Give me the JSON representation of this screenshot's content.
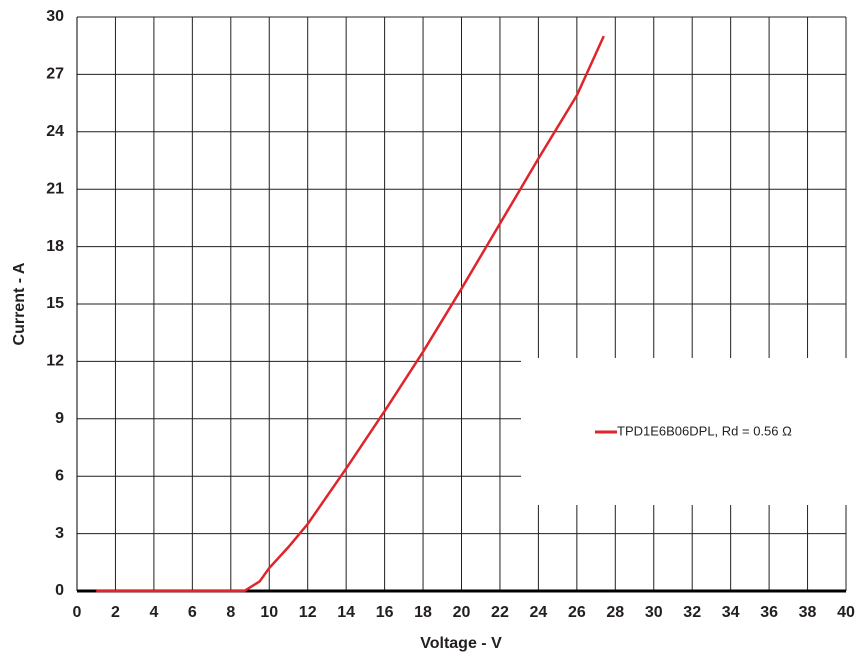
{
  "chart_data": {
    "type": "line",
    "xlabel": "Voltage - V",
    "ylabel": "Current - A",
    "x": [
      1,
      8.7,
      9.5,
      10,
      11,
      12,
      14,
      16,
      18,
      20,
      22,
      24,
      26,
      27.4
    ],
    "series": [
      {
        "name": "TPD1E6B06DPL, Rd = 0.56 Ω",
        "color": "#e0242b",
        "values": [
          0,
          0,
          0.5,
          1.2,
          2.3,
          3.5,
          6.4,
          9.4,
          12.5,
          15.8,
          19.2,
          22.6,
          25.9,
          29
        ]
      }
    ],
    "xlim": [
      0,
      40
    ],
    "xticks": [
      0,
      2,
      4,
      6,
      8,
      10,
      12,
      14,
      16,
      18,
      20,
      22,
      24,
      26,
      28,
      30,
      32,
      34,
      36,
      38,
      40
    ],
    "ylim": [
      0,
      30
    ],
    "yticks": [
      0,
      3,
      6,
      9,
      12,
      15,
      18,
      21,
      24,
      27,
      30
    ],
    "grid": true,
    "legend": "right"
  }
}
